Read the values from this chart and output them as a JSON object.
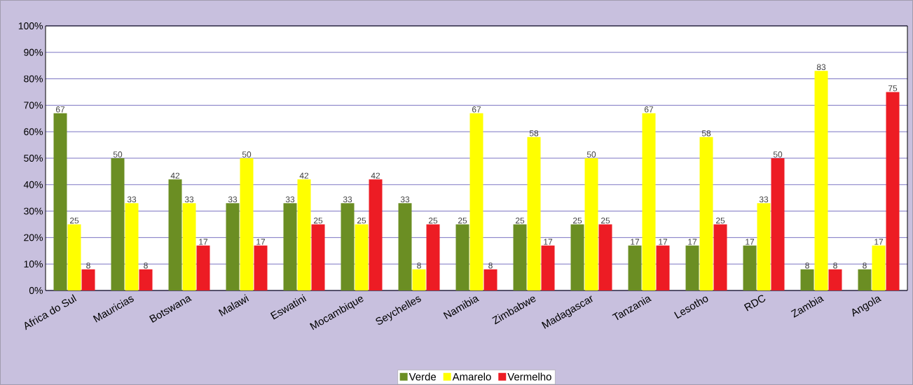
{
  "chart_data": {
    "type": "bar",
    "categories": [
      "Africa do Sul",
      "Mauricias",
      "Botswana",
      "Malawi",
      "Eswatini",
      "Mocambique",
      "Seychelles",
      "Namibia",
      "Zimbabwe",
      "Madagascar",
      "Tanzania",
      "Lesotho",
      "RDC",
      "Zambia",
      "Angola"
    ],
    "series": [
      {
        "name": "Verde",
        "color": "#6b8e23",
        "values": [
          67,
          50,
          42,
          33,
          33,
          33,
          33,
          25,
          25,
          25,
          17,
          17,
          17,
          8,
          8
        ]
      },
      {
        "name": "Amarelo",
        "color": "#ffff00",
        "values": [
          25,
          33,
          33,
          50,
          42,
          25,
          8,
          67,
          58,
          50,
          67,
          58,
          33,
          83,
          17
        ]
      },
      {
        "name": "Vermelho",
        "color": "#ed1c24",
        "values": [
          8,
          8,
          17,
          17,
          25,
          42,
          25,
          8,
          17,
          25,
          17,
          25,
          50,
          8,
          75
        ]
      }
    ],
    "ylim": [
      0,
      100
    ],
    "yticks": [
      {
        "value": 0,
        "label": "0%"
      },
      {
        "value": 10,
        "label": "10%"
      },
      {
        "value": 20,
        "label": "20%"
      },
      {
        "value": 30,
        "label": "30%"
      },
      {
        "value": 40,
        "label": "40%"
      },
      {
        "value": 50,
        "label": "50%"
      },
      {
        "value": 60,
        "label": "60%"
      },
      {
        "value": 70,
        "label": "70%"
      },
      {
        "value": 80,
        "label": "80%"
      },
      {
        "value": 90,
        "label": "90%"
      },
      {
        "value": 100,
        "label": "100%"
      }
    ],
    "grid": "y",
    "legend": "bottom",
    "data_labels": true
  }
}
